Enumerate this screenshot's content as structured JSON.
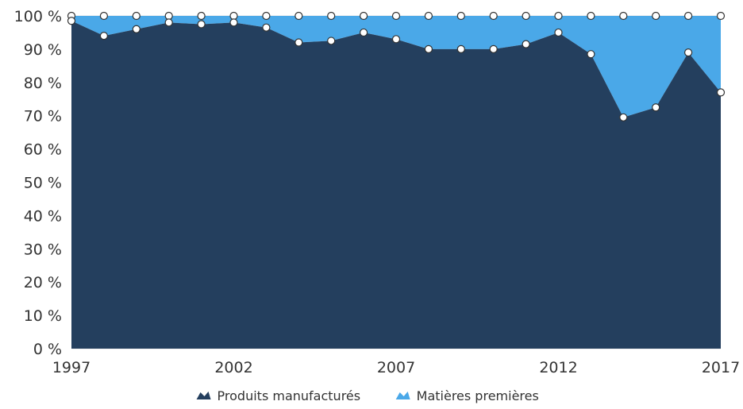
{
  "chart_data": {
    "type": "area",
    "stacked": "percent",
    "x": [
      1997,
      1998,
      1999,
      2000,
      2001,
      2002,
      2003,
      2004,
      2005,
      2006,
      2007,
      2008,
      2009,
      2010,
      2011,
      2012,
      2013,
      2014,
      2015,
      2016,
      2017
    ],
    "x_tick_labels": [
      "1997",
      "2002",
      "2007",
      "2012",
      "2017"
    ],
    "x_ticks": [
      1997,
      2002,
      2007,
      2012,
      2017
    ],
    "y_tick_labels": [
      "0 %",
      "10 %",
      "20 %",
      "30 %",
      "40 %",
      "50 %",
      "60 %",
      "70 %",
      "80 %",
      "90 %",
      "100 %"
    ],
    "y_ticks": [
      0,
      10,
      20,
      30,
      40,
      50,
      60,
      70,
      80,
      90,
      100
    ],
    "ylim": [
      0,
      100
    ],
    "xlim": [
      1997,
      2017
    ],
    "series": [
      {
        "name": "Produits manufacturés",
        "color": "#243f5e",
        "values": [
          98.5,
          94,
          96,
          98,
          97.5,
          98,
          96.5,
          92,
          92.5,
          95,
          93,
          90,
          90,
          90,
          91.5,
          95,
          88.5,
          69.5,
          72.5,
          89,
          77
        ]
      },
      {
        "name": "Matières premières",
        "color": "#4aa8e8",
        "values": [
          1.5,
          6,
          4,
          2,
          2.5,
          2,
          3.5,
          8,
          7.5,
          5,
          7,
          10,
          10,
          10,
          8.5,
          5,
          11.5,
          30.5,
          27.5,
          11,
          23
        ]
      }
    ],
    "legend": {
      "placement": "bottom-center"
    },
    "grid": true,
    "title": "",
    "xlabel": "",
    "ylabel": ""
  }
}
